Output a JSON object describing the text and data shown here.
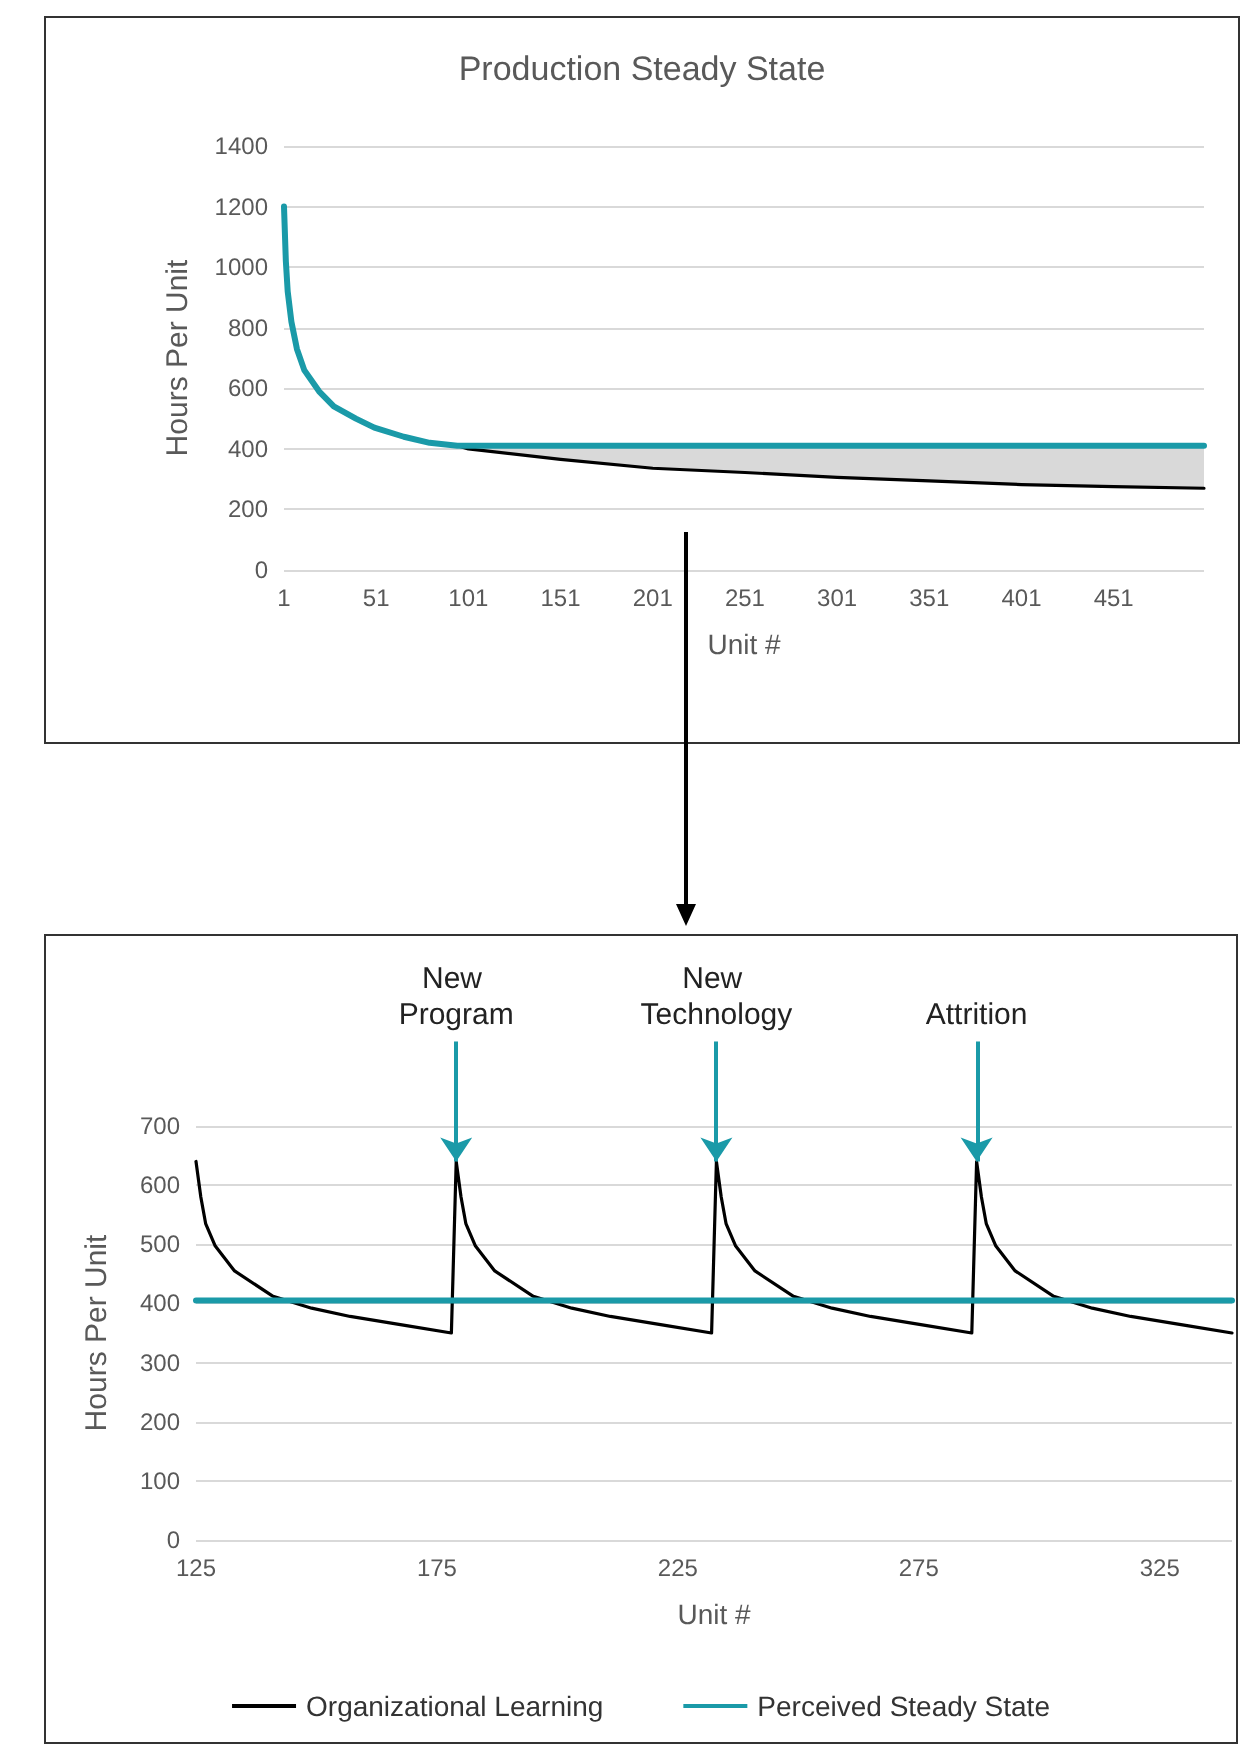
{
  "chart_data": [
    {
      "type": "line",
      "title": "Production Steady State",
      "xlabel": "Unit #",
      "ylabel": "Hours Per Unit",
      "xlim": [
        1,
        500
      ],
      "xticks": [
        1,
        51,
        101,
        151,
        201,
        251,
        301,
        351,
        401,
        451
      ],
      "ylim": [
        0,
        1400
      ],
      "yticks": [
        0,
        200,
        400,
        600,
        800,
        1000,
        1200,
        1400
      ],
      "grid": "y",
      "legend": false,
      "marker": "none",
      "line_style": "solid",
      "series": [
        {
          "color": "#000000",
          "x": [
            95,
            101,
            151,
            201,
            251,
            301,
            351,
            401,
            451,
            500
          ],
          "values": [
            410,
            400,
            365,
            336,
            322,
            306,
            294,
            282,
            275,
            270
          ],
          "lower": [
            410,
            400,
            365,
            336,
            322,
            306,
            294,
            282,
            275,
            270
          ],
          "upper": [
            410,
            410,
            410,
            410,
            410,
            410,
            410,
            410,
            410,
            410
          ]
        },
        {
          "color": "#1a9aa8",
          "x": [
            1,
            2,
            3,
            5,
            8,
            12,
            20,
            28,
            40,
            50,
            66,
            80,
            95,
            500
          ],
          "values": [
            1200,
            1020,
            920,
            820,
            730,
            660,
            590,
            540,
            500,
            470,
            440,
            420,
            410,
            410
          ]
        }
      ]
    },
    {
      "type": "line",
      "xlabel": "Unit #",
      "ylabel": "Hours Per Unit",
      "xlim": [
        125,
        340
      ],
      "xticks": [
        125,
        175,
        225,
        275,
        325
      ],
      "ylim": [
        0,
        700
      ],
      "yticks": [
        0,
        100,
        200,
        300,
        400,
        500,
        600,
        700
      ],
      "grid": "y",
      "legend": "bottom",
      "marker": "none",
      "line_style": "solid",
      "annotations": [
        {
          "text": "New Program",
          "x": 179,
          "y": 640
        },
        {
          "text": "New Technology",
          "x": 233,
          "y": 640
        },
        {
          "text": "Attrition",
          "x": 287,
          "y": 640
        }
      ],
      "series": [
        {
          "name": "Organizational Learning",
          "color": "#000000",
          "x": [
            125,
            126,
            127,
            129,
            133,
            141,
            149,
            157,
            169,
            178,
            179,
            180,
            181,
            183,
            187,
            195,
            203,
            211,
            223,
            232,
            233,
            234,
            235,
            237,
            241,
            249,
            257,
            265,
            277,
            286,
            287,
            288,
            289,
            291,
            295,
            303,
            311,
            319,
            331,
            340
          ],
          "values": [
            640,
            580,
            535,
            497,
            455,
            412,
            392,
            378,
            362,
            350,
            640,
            580,
            535,
            497,
            455,
            412,
            392,
            378,
            362,
            350,
            640,
            580,
            535,
            497,
            455,
            412,
            392,
            378,
            362,
            350,
            640,
            580,
            535,
            497,
            455,
            412,
            392,
            378,
            362,
            350
          ]
        },
        {
          "name": "Perceived Steady State",
          "color": "#1a9aa8",
          "x": [
            125,
            340
          ],
          "values": [
            405,
            405
          ]
        }
      ]
    }
  ]
}
